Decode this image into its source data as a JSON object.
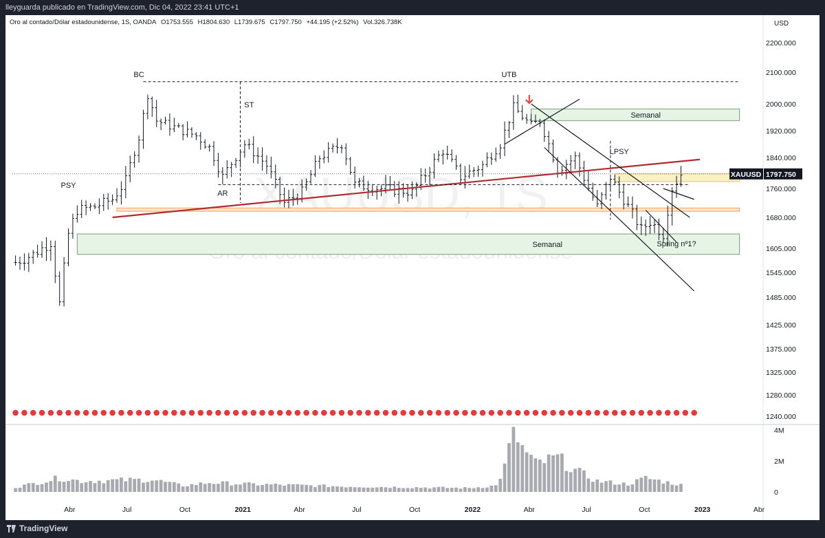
{
  "header": {
    "text": "lleyguarda publicado en TradingView.com, Dic 04, 2022 23:41 UTC+1"
  },
  "info": {
    "symbol": "Oro al contado/Dólar estadounidense, 1S, OANDA",
    "open": "O1753.555",
    "high": "H1804.630",
    "low": "L1739.675",
    "close": "C1797.750",
    "change": "+44.195 (+2.52%)",
    "volume": "Vol.326.738K"
  },
  "watermark": {
    "symbol": "XAUUSD, 1S",
    "name": "Oro al contado/Dólar estadounidense"
  },
  "footer": {
    "brand": "TradingView"
  },
  "chart_data": {
    "type": "candlestick",
    "currency": "USD",
    "y_tick_labels": [
      "2200.000",
      "2100.000",
      "2000.000",
      "1920.000",
      "1840.000",
      "1760.000",
      "1680.000",
      "1605.000",
      "1545.000",
      "1485.000",
      "1425.000",
      "1375.000",
      "1325.000",
      "1280.000",
      "1240.000"
    ],
    "y_ticks": [
      2200,
      2100,
      2000,
      1920,
      1840,
      1760,
      1680,
      1605,
      1545,
      1485,
      1425,
      1375,
      1325,
      1280,
      1240
    ],
    "x_tick_labels": [
      "Abr",
      "Jul",
      "Oct",
      "2021",
      "Abr",
      "Jul",
      "Oct",
      "2022",
      "Abr",
      "Jul",
      "Oct",
      "2023",
      "Abr"
    ],
    "x_tick_dates": [
      "2020-04-01",
      "2020-07-01",
      "2020-10-01",
      "2021-01-01",
      "2021-04-01",
      "2021-07-01",
      "2021-10-01",
      "2022-01-01",
      "2022-04-01",
      "2022-07-01",
      "2022-10-01",
      "2023-01-01",
      "2023-04-01"
    ],
    "price_scale_nodes": [
      [
        2200,
        40
      ],
      [
        2100,
        83
      ],
      [
        2000,
        129
      ],
      [
        1920,
        168
      ],
      [
        1840,
        207
      ],
      [
        1760,
        252
      ],
      [
        1680,
        294
      ],
      [
        1605,
        339
      ],
      [
        1545,
        374
      ],
      [
        1485,
        410
      ],
      [
        1425,
        450
      ],
      [
        1375,
        485
      ],
      [
        1325,
        519
      ],
      [
        1280,
        552
      ],
      [
        1240,
        583
      ]
    ],
    "series_anchors": [
      {
        "date": "2020-01-06",
        "price": 1570
      },
      {
        "date": "2020-02-03",
        "price": 1590
      },
      {
        "date": "2020-03-02",
        "price": 1620
      },
      {
        "date": "2020-03-16",
        "price": 1470
      },
      {
        "date": "2020-03-30",
        "price": 1640
      },
      {
        "date": "2020-04-13",
        "price": 1700
      },
      {
        "date": "2020-05-11",
        "price": 1710
      },
      {
        "date": "2020-06-08",
        "price": 1730
      },
      {
        "date": "2020-06-29",
        "price": 1780
      },
      {
        "date": "2020-07-20",
        "price": 1900
      },
      {
        "date": "2020-08-03",
        "price": 2030
      },
      {
        "date": "2020-08-17",
        "price": 1950
      },
      {
        "date": "2020-09-14",
        "price": 1930
      },
      {
        "date": "2020-10-19",
        "price": 1905
      },
      {
        "date": "2020-11-09",
        "price": 1870
      },
      {
        "date": "2020-11-30",
        "price": 1790
      },
      {
        "date": "2021-01-04",
        "price": 1880
      },
      {
        "date": "2021-02-08",
        "price": 1820
      },
      {
        "date": "2021-03-08",
        "price": 1720
      },
      {
        "date": "2021-04-05",
        "price": 1750
      },
      {
        "date": "2021-05-03",
        "price": 1840
      },
      {
        "date": "2021-06-07",
        "price": 1880
      },
      {
        "date": "2021-06-28",
        "price": 1770
      },
      {
        "date": "2021-08-09",
        "price": 1760
      },
      {
        "date": "2021-09-27",
        "price": 1750
      },
      {
        "date": "2021-11-15",
        "price": 1860
      },
      {
        "date": "2021-12-13",
        "price": 1790
      },
      {
        "date": "2022-01-17",
        "price": 1820
      },
      {
        "date": "2022-02-14",
        "price": 1880
      },
      {
        "date": "2022-03-07",
        "price": 1990
      },
      {
        "date": "2022-04-04",
        "price": 1935
      },
      {
        "date": "2022-04-18",
        "price": 1950
      },
      {
        "date": "2022-05-16",
        "price": 1810
      },
      {
        "date": "2022-06-13",
        "price": 1840
      },
      {
        "date": "2022-07-18",
        "price": 1710
      },
      {
        "date": "2022-08-08",
        "price": 1790
      },
      {
        "date": "2022-09-05",
        "price": 1710
      },
      {
        "date": "2022-09-26",
        "price": 1650
      },
      {
        "date": "2022-10-10",
        "price": 1670
      },
      {
        "date": "2022-10-31",
        "price": 1640
      },
      {
        "date": "2022-11-14",
        "price": 1760
      },
      {
        "date": "2022-11-28",
        "price": 1797.75
      }
    ],
    "last_price": 1797.75,
    "last_price_label": "1797.750",
    "symbol_label": "XAUUSD",
    "volume": {
      "axis_labels": [
        "4M",
        "2M",
        "0"
      ],
      "axis_values": [
        4000000,
        2000000,
        0
      ],
      "anchors": [
        {
          "date": "2020-01-06",
          "v": 300000
        },
        {
          "date": "2020-03-16",
          "v": 900000
        },
        {
          "date": "2020-04-20",
          "v": 700000
        },
        {
          "date": "2020-08-10",
          "v": 800000
        },
        {
          "date": "2020-09-28",
          "v": 400000
        },
        {
          "date": "2020-11-09",
          "v": 600000
        },
        {
          "date": "2021-01-11",
          "v": 500000
        },
        {
          "date": "2021-06-21",
          "v": 350000
        },
        {
          "date": "2021-12-27",
          "v": 250000
        },
        {
          "date": "2022-02-07",
          "v": 400000
        },
        {
          "date": "2022-02-21",
          "v": 1600000
        },
        {
          "date": "2022-03-07",
          "v": 4100000
        },
        {
          "date": "2022-03-21",
          "v": 2800000
        },
        {
          "date": "2022-04-11",
          "v": 1800000
        },
        {
          "date": "2022-05-16",
          "v": 2200000
        },
        {
          "date": "2022-06-13",
          "v": 1400000
        },
        {
          "date": "2022-07-18",
          "v": 700000
        },
        {
          "date": "2022-09-05",
          "v": 500000
        },
        {
          "date": "2022-10-03",
          "v": 900000
        },
        {
          "date": "2022-11-28",
          "v": 450000
        }
      ]
    },
    "annotations": {
      "BC": "BC",
      "ST": "ST",
      "AR": "AR",
      "PSY": "PSY",
      "UTB": "UTB",
      "LPSY": "LPSY",
      "spring": "Spring nº1?",
      "zone_top": "Semanal",
      "zone_bottom": "Semanal"
    },
    "zones": [
      {
        "name": "zone_top",
        "from": "2022-04-04",
        "to": "2023-03-01",
        "ymin": 1950,
        "ymax": 1985,
        "color": "#e6f4e6"
      },
      {
        "name": "zone_bottom",
        "from": "2020-04-13",
        "to": "2023-03-01",
        "ymin": 1590,
        "ymax": 1640,
        "color": "#e6f4e6"
      },
      {
        "name": "zone_resistance",
        "from": "2022-08-15",
        "to": "2023-03-01",
        "ymin": 1778,
        "ymax": 1798,
        "color": "#faf0c8"
      }
    ],
    "grid": false
  },
  "colors": {
    "background": "#ffffff",
    "candles": "#131722",
    "volume": "#a8aab0",
    "trendline_red": "#b22a30",
    "zone_green_fill": "#e6f4e6",
    "zone_green_border": "#7a9c7a",
    "orange_line": "#f5a05a",
    "frame": "#1e222d",
    "arrow": "#e53935"
  }
}
